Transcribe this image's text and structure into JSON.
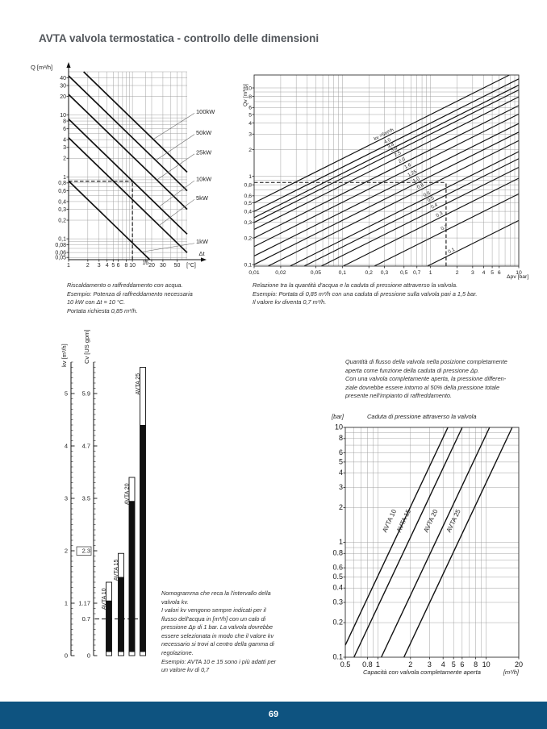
{
  "page": {
    "title": "AVTA valvola termostatica - controllo delle dimensioni",
    "footer_page_number": "69",
    "colors": {
      "footer_bar": "#0e5380",
      "title": "#53575c",
      "line": "#111111",
      "grid": "#999999"
    }
  },
  "captions": {
    "heating": "Riscaldamento o raffreddamento con acqua.\nEsempio: Potenza di raffreddamento necessaria\n10 kW con Δt = 10 °C.\nPortata richiesta 0,85 m³/h.",
    "pressure": "Relazione tra la quantità d'acqua e la caduta di pressione attraverso la valvola.\nEsempio: Portata di 0,85 m³/h con una caduta di pressione sulla valvola pari a 1,5 bar.\nIl valore kv diventa 0,7 m³/h.",
    "flow": "Quantità di flusso della valvola nella posizione completamente\naperta come funzione della caduta di pressione Δp.\nCon una valvola completamente aperta, la pressione differen-\nziale dovrebbe essere intorno al 50% della pressione totale\npresente nell'impianto di raffreddamento.",
    "nomogram": "Nomogramma che reca la l'intervallo della\nvalvola kv.\nI valori kv vengono sempre indicati per il\nflusso dell'acqua in [m³/h] con un calo di\npressione Δp di 1 bar. La valvola dovrebbe\nessere selezionata in modo che il valore kv\nnecessario si trovi al centro della gamma di\nregolazione.\nEsempio: AVTA 10 e 15 sono i più adatti per\nun valore kv di 0,7"
  },
  "chart_data": [
    {
      "id": "power",
      "type": "line",
      "log": "xy",
      "y_axis_label": "Q [m³/h]",
      "x_axis_label": "Δt",
      "x_unit": "[°C]",
      "xlim": [
        1,
        72
      ],
      "ylim": [
        0.046,
        50
      ],
      "axis": "arrows",
      "x_ticks": [
        {
          "v": 1,
          "t": "1"
        },
        {
          "v": 2,
          "t": "2"
        },
        {
          "v": 3,
          "t": "3"
        },
        {
          "v": 4,
          "t": "4"
        },
        {
          "v": 5,
          "t": "5"
        },
        {
          "v": 6,
          "t": "6"
        },
        {
          "v": 8,
          "t": "8"
        },
        {
          "v": 10,
          "t": "10"
        },
        {
          "v": 16,
          "t": "16",
          "raised": true
        },
        {
          "v": 20,
          "t": "20"
        },
        {
          "v": 30,
          "t": "30"
        },
        {
          "v": 50,
          "t": "50"
        }
      ],
      "y_ticks": [
        {
          "v": 40,
          "t": "40"
        },
        {
          "v": 30,
          "t": "30"
        },
        {
          "v": 20,
          "t": "20"
        },
        {
          "v": 10,
          "t": "10"
        },
        {
          "v": 8,
          "t": "8"
        },
        {
          "v": 6,
          "t": "6"
        },
        {
          "v": 4,
          "t": "4"
        },
        {
          "v": 3,
          "t": "3"
        },
        {
          "v": 2,
          "t": "2"
        },
        {
          "v": 1,
          "t": "1"
        },
        {
          "v": 0.8,
          "t": "0,8"
        },
        {
          "v": 0.6,
          "t": "0,6"
        },
        {
          "v": 0.4,
          "t": "0,4"
        },
        {
          "v": 0.3,
          "t": "0,3"
        },
        {
          "v": 0.2,
          "t": "0,2"
        },
        {
          "v": 0.1,
          "t": "0,1"
        },
        {
          "v": 0.08,
          "t": "0,08"
        },
        {
          "v": 0.06,
          "t": "0,06"
        },
        {
          "v": 0.05,
          "t": "0,05"
        }
      ],
      "extra_grid_x": [
        16
      ],
      "series": [
        {
          "name": "100kW",
          "points": [
            [
              1.72,
              50
            ],
            [
              72,
              1.194
            ]
          ]
        },
        {
          "name": "50kW",
          "points": [
            [
              1,
              43
            ],
            [
              72,
              0.597
            ]
          ]
        },
        {
          "name": "25kW",
          "points": [
            [
              1,
              21.5
            ],
            [
              72,
              0.299
            ]
          ]
        },
        {
          "name": "10kW",
          "points": [
            [
              1,
              8.6
            ],
            [
              72,
              0.119
            ]
          ]
        },
        {
          "name": "5kW",
          "points": [
            [
              1,
              4.3
            ],
            [
              72,
              0.0597
            ]
          ]
        },
        {
          "name": "1kW",
          "points": [
            [
              1,
              0.86
            ],
            [
              18.7,
              0.046
            ]
          ]
        }
      ],
      "side_labels": [
        {
          "text": "100kW",
          "y": 11.35,
          "anchor": [
            21.2,
            4.05
          ]
        },
        {
          "text": "50kW",
          "y": 5.17,
          "anchor": [
            23.2,
            1.85
          ]
        },
        {
          "text": "25kW",
          "y": 2.5,
          "anchor": [
            24.1,
            0.893
          ]
        },
        {
          "text": "10kW",
          "y": 0.922,
          "anchor": [
            26.1,
            0.329
          ]
        },
        {
          "text": "5kW",
          "y": 0.459,
          "anchor": [
            26.2,
            0.164
          ]
        },
        {
          "text": "1kW",
          "y": 0.0897,
          "anchor": [
            14,
            0.0614
          ]
        }
      ],
      "dashed": [
        [
          [
            1,
            0.85
          ],
          [
            10,
            0.85
          ]
        ],
        [
          [
            10,
            0.046
          ],
          [
            10,
            0.85
          ]
        ]
      ],
      "example": {
        "delta_t_C": 10,
        "power_kW": 10,
        "flow_m3h": 0.85
      }
    },
    {
      "id": "kv",
      "type": "line",
      "log": "xy",
      "y_axis_label": "Qv [m³/h]",
      "x_axis_label": "Δpv [bar]",
      "xlim": [
        0.01,
        10
      ],
      "ylim": [
        0.096,
        14
      ],
      "axis": "box",
      "x_ticks": [
        {
          "v": 0.01,
          "t": "0,01"
        },
        {
          "v": 0.02,
          "t": "0,02"
        },
        {
          "v": 0.05,
          "t": "0,05"
        },
        {
          "v": 0.1,
          "t": "0,1"
        },
        {
          "v": 0.2,
          "t": "0,2"
        },
        {
          "v": 0.3,
          "t": "0,3"
        },
        {
          "v": 0.5,
          "t": "0,5"
        },
        {
          "v": 0.7,
          "t": "0,7"
        },
        {
          "v": 1,
          "t": "1"
        },
        {
          "v": 2,
          "t": "2"
        },
        {
          "v": 3,
          "t": "3"
        },
        {
          "v": 4,
          "t": "4"
        },
        {
          "v": 5,
          "t": "5"
        },
        {
          "v": 6,
          "t": "6"
        },
        {
          "v": 10,
          "t": "10"
        }
      ],
      "y_ticks": [
        {
          "v": 10,
          "t": "10"
        },
        {
          "v": 8,
          "t": "8"
        },
        {
          "v": 6,
          "t": "6"
        },
        {
          "v": 5,
          "t": "5"
        },
        {
          "v": 4,
          "t": "4"
        },
        {
          "v": 3,
          "t": "3"
        },
        {
          "v": 2,
          "t": "2"
        },
        {
          "v": 1,
          "t": "1"
        },
        {
          "v": 0.8,
          "t": "0,8"
        },
        {
          "v": 0.6,
          "t": "0,6"
        },
        {
          "v": 0.5,
          "t": "0,5"
        },
        {
          "v": 0.4,
          "t": "0,4"
        },
        {
          "v": 0.3,
          "t": "0,3"
        },
        {
          "v": 0.2,
          "t": "0,2"
        },
        {
          "v": 0.1,
          "t": "0,1"
        }
      ],
      "series": [
        {
          "kv": 5,
          "points": [
            [
              0.01,
              0.5
            ],
            [
              10,
              15.81
            ]
          ]
        },
        {
          "kv": 4.0,
          "points": [
            [
              0.01,
              0.4
            ],
            [
              10,
              12.65
            ]
          ]
        },
        {
          "kv": 3.4,
          "points": [
            [
              0.01,
              0.34
            ],
            [
              10,
              10.75
            ]
          ]
        },
        {
          "kv": 3.0,
          "points": [
            [
              0.01,
              0.3
            ],
            [
              10,
              9.49
            ]
          ]
        },
        {
          "kv": 2.5,
          "points": [
            [
              0.01,
              0.25
            ],
            [
              10,
              7.91
            ]
          ]
        },
        {
          "kv": 2.0,
          "points": [
            [
              0.01,
              0.2
            ],
            [
              10,
              6.32
            ]
          ]
        },
        {
          "kv": 1.6,
          "points": [
            [
              0.01,
              0.16
            ],
            [
              10,
              5.06
            ]
          ]
        },
        {
          "kv": 1.25,
          "points": [
            [
              0.01,
              0.125
            ],
            [
              10,
              3.95
            ]
          ]
        },
        {
          "kv": 1.0,
          "points": [
            [
              0.01,
              0.1
            ],
            [
              10,
              3.16
            ]
          ]
        },
        {
          "kv": 0.8,
          "points": [
            [
              0.01,
              0.08
            ],
            [
              10,
              2.53
            ]
          ]
        },
        {
          "kv": 0.6,
          "points": [
            [
              0.01,
              0.06
            ],
            [
              10,
              1.9
            ]
          ]
        },
        {
          "kv": 0.5,
          "points": [
            [
              0.01,
              0.05
            ],
            [
              10,
              1.58
            ]
          ]
        },
        {
          "kv": 0.4,
          "points": [
            [
              0.01,
              0.04
            ],
            [
              10,
              1.26
            ]
          ]
        },
        {
          "kv": 0.3,
          "points": [
            [
              0.01,
              0.03
            ],
            [
              10,
              0.949
            ]
          ]
        },
        {
          "kv": 0.2,
          "points": [
            [
              0.01,
              0.02
            ],
            [
              10,
              0.632
            ]
          ]
        },
        {
          "kv": 0.1,
          "points": [
            [
              0.01,
              0.01
            ],
            [
              10,
              0.316
            ]
          ]
        }
      ],
      "line_labels": [
        {
          "t": "kv =5m³/h",
          "x": 0.3,
          "y": 2.74,
          "rot": -27
        },
        {
          "t": "4.0",
          "x": 0.33,
          "y": 2.3,
          "rot": -27
        },
        {
          "t": "3.4",
          "x": 0.36,
          "y": 2.04,
          "rot": -27
        },
        {
          "t": "3.0",
          "x": 0.39,
          "y": 1.87,
          "rot": -27
        },
        {
          "t": "2.5",
          "x": 0.43,
          "y": 1.64,
          "rot": -27
        },
        {
          "t": "2.0",
          "x": 0.48,
          "y": 1.39,
          "rot": -27
        },
        {
          "t": "1.6",
          "x": 0.56,
          "y": 1.2,
          "rot": -27
        },
        {
          "t": "1.25",
          "x": 0.63,
          "y": 0.99,
          "rot": -27
        },
        {
          "t": "1.0",
          "x": 0.7,
          "y": 0.837,
          "rot": -27
        },
        {
          "t": "0.8",
          "x": 0.78,
          "y": 0.707,
          "rot": -27
        },
        {
          "t": "0.6",
          "x": 0.92,
          "y": 0.576,
          "rot": -27
        },
        {
          "t": "0.5",
          "x": 1.02,
          "y": 0.505,
          "rot": -27
        },
        {
          "t": "0.4",
          "x": 1.12,
          "y": 0.423,
          "rot": -27
        },
        {
          "t": "0.3",
          "x": 1.28,
          "y": 0.339,
          "rot": -27
        },
        {
          "t": "0.2",
          "x": 1.45,
          "y": 0.241,
          "rot": -27
        },
        {
          "t": "0.1",
          "x": 1.75,
          "y": 0.132,
          "rot": -27
        }
      ],
      "dashed": [
        [
          [
            0.01,
            0.85
          ],
          [
            1.5,
            0.85
          ]
        ],
        [
          [
            1.5,
            0.096
          ],
          [
            1.5,
            0.85
          ]
        ]
      ],
      "example": {
        "flow_m3h": 0.85,
        "dp_bar": 1.5,
        "kv_m3h": 0.7
      }
    },
    {
      "id": "nomogram",
      "type": "nomogram",
      "kv_axis": {
        "label": "kv [m³/h]",
        "max": 5.6,
        "minor_step": 0.1,
        "major_ticks": [
          0,
          1,
          2,
          3,
          4,
          5
        ]
      },
      "cv_axis": {
        "label": "Cv [US gpm]",
        "ticks": [
          {
            "kv": 0,
            "t": "0"
          },
          {
            "kv": 0.7,
            "t": "0.7"
          },
          {
            "kv": 1,
            "t": "1.17"
          },
          {
            "kv": 2,
            "t": "2.3",
            "boxed": true
          },
          {
            "kv": 3,
            "t": "3.5"
          },
          {
            "kv": 4,
            "t": "4.7"
          },
          {
            "kv": 5,
            "t": "5.9"
          }
        ]
      },
      "dashed_kv": 0.7,
      "bottom_gap": 0.07,
      "bars": [
        {
          "label": "AVTA 10",
          "solid_top": 1.05,
          "range_top": 1.4
        },
        {
          "label": "AVTA 15",
          "solid_top": 1.5,
          "range_top": 1.95
        },
        {
          "label": "AVTA 20",
          "solid_top": 2.95,
          "range_top": 3.4
        },
        {
          "label": "AVTA 25",
          "solid_top": 4.4,
          "range_top": 5.5
        }
      ]
    },
    {
      "id": "capacity",
      "type": "line",
      "log": "xy",
      "title": "Caduta di pressione attraverso la valvola",
      "y_unit": "[bar]",
      "x_axis_label": "Capacità con valvola completamente aperta",
      "x_unit": "[m³/h]",
      "xlim": [
        0.5,
        20
      ],
      "ylim": [
        0.1,
        10
      ],
      "axis": "box",
      "x_ticks": [
        {
          "v": 0.5,
          "t": "0.5"
        },
        {
          "v": 0.8,
          "t": "0.8"
        },
        {
          "v": 1,
          "t": "1"
        },
        {
          "v": 2,
          "t": "2"
        },
        {
          "v": 3,
          "t": "3"
        },
        {
          "v": 4,
          "t": "4"
        },
        {
          "v": 5,
          "t": "5"
        },
        {
          "v": 6,
          "t": "6"
        },
        {
          "v": 8,
          "t": "8"
        },
        {
          "v": 10,
          "t": "10"
        },
        {
          "v": 20,
          "t": "20"
        }
      ],
      "y_ticks": [
        {
          "v": 10,
          "t": "10"
        },
        {
          "v": 8,
          "t": "8"
        },
        {
          "v": 6,
          "t": "6"
        },
        {
          "v": 5,
          "t": "5"
        },
        {
          "v": 4,
          "t": "4"
        },
        {
          "v": 3,
          "t": "3"
        },
        {
          "v": 2,
          "t": "2"
        },
        {
          "v": 1,
          "t": "1"
        },
        {
          "v": 0.8,
          "t": "0.8"
        },
        {
          "v": 0.6,
          "t": "0.6"
        },
        {
          "v": 0.5,
          "t": "0.5"
        },
        {
          "v": 0.4,
          "t": "0.4"
        },
        {
          "v": 0.3,
          "t": "0.3"
        },
        {
          "v": 0.2,
          "t": "0.2"
        },
        {
          "v": 0.1,
          "t": "0.1"
        }
      ],
      "series": [
        {
          "name": "AVTA 10",
          "kvs": 1.4,
          "points": [
            [
              0.443,
              0.1
            ],
            [
              4.43,
              10
            ]
          ]
        },
        {
          "name": "AVTA 15",
          "kvs": 1.9,
          "points": [
            [
              0.601,
              0.1
            ],
            [
              6.01,
              10
            ]
          ]
        },
        {
          "name": "AVTA 20",
          "kvs": 3.4,
          "points": [
            [
              1.075,
              0.1
            ],
            [
              10.75,
              10
            ]
          ]
        },
        {
          "name": "AVTA 25",
          "kvs": 5.5,
          "points": [
            [
              1.739,
              0.1
            ],
            [
              17.39,
              10
            ]
          ]
        }
      ],
      "line_labels": [
        {
          "t": "AVTA 10",
          "x": 1.33,
          "y": 1.45,
          "rot": -65
        },
        {
          "t": "AVTA 15",
          "x": 1.8,
          "y": 1.45,
          "rot": -65
        },
        {
          "t": "AVTA 20",
          "x": 3.2,
          "y": 1.45,
          "rot": -65
        },
        {
          "t": "AVTA 25",
          "x": 5.2,
          "y": 1.45,
          "rot": -65
        }
      ]
    }
  ]
}
